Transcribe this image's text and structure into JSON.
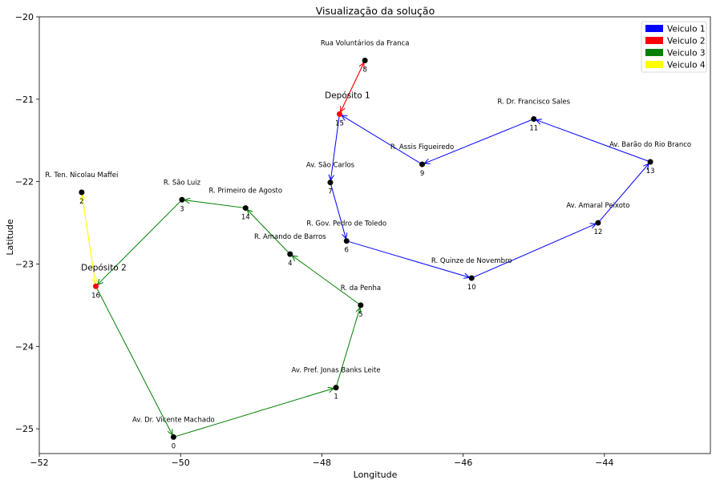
{
  "chart_data": {
    "type": "scatter",
    "title": "Visualização da solução",
    "xlabel": "Longitude",
    "ylabel": "Latitude",
    "xlim": [
      -52,
      -42.5
    ],
    "ylim": [
      -25.3,
      -20
    ],
    "xticks": [
      -52,
      -50,
      -48,
      -46,
      -44
    ],
    "yticks": [
      -20,
      -21,
      -22,
      -23,
      -24,
      -25
    ],
    "xtick_labels": [
      "−52",
      "−50",
      "−48",
      "−46",
      "−44"
    ],
    "ytick_labels": [
      "−20",
      "−21",
      "−22",
      "−23",
      "−24",
      "−25"
    ],
    "grid": false,
    "legend_position": "top-right",
    "legend": [
      {
        "name": "Veiculo 1",
        "color": "#0000ff"
      },
      {
        "name": "Veiculo 2",
        "color": "#ff0000"
      },
      {
        "name": "Veiculo 3",
        "color": "#008000"
      },
      {
        "name": "Veiculo 4",
        "color": "#ffff00"
      }
    ],
    "nodes": [
      {
        "id": "0",
        "x": -50.1,
        "y": -25.1,
        "label": "Av. Dr. Vicente Machado"
      },
      {
        "id": "1",
        "x": -47.8,
        "y": -24.5,
        "label": "Av. Pref. Jonas Banks Leite"
      },
      {
        "id": "2",
        "x": -51.4,
        "y": -22.13,
        "label": "R. Ten. Nicolau Maffei"
      },
      {
        "id": "3",
        "x": -49.98,
        "y": -22.22,
        "label": "R. São Luiz"
      },
      {
        "id": "4",
        "x": -48.45,
        "y": -22.88,
        "label": "R. Amando de Barros"
      },
      {
        "id": "5",
        "x": -47.45,
        "y": -23.5,
        "label": "R. da Penha"
      },
      {
        "id": "6",
        "x": -47.65,
        "y": -22.72,
        "label": "R. Gov. Pedro de Toledo"
      },
      {
        "id": "7",
        "x": -47.88,
        "y": -22.01,
        "label": "Av. São Carlos"
      },
      {
        "id": "8",
        "x": -47.39,
        "y": -20.53,
        "label": "Rua Voluntários da Franca"
      },
      {
        "id": "9",
        "x": -46.58,
        "y": -21.79,
        "label": "R. Assis Figueiredo"
      },
      {
        "id": "10",
        "x": -45.88,
        "y": -23.17,
        "label": "R. Quinze de Novembro"
      },
      {
        "id": "11",
        "x": -45.0,
        "y": -21.24,
        "label": "R. Dr. Francisco Sales"
      },
      {
        "id": "12",
        "x": -44.09,
        "y": -22.5,
        "label": "Av. Amaral Peixoto"
      },
      {
        "id": "13",
        "x": -43.35,
        "y": -21.76,
        "label": "Av. Barão do Rio Branco"
      },
      {
        "id": "14",
        "x": -49.08,
        "y": -22.32,
        "label": "R. Primeiro de Agosto"
      },
      {
        "id": "15",
        "x": -47.75,
        "y": -21.18,
        "label": "",
        "depot": "Depósito 1"
      },
      {
        "id": "16",
        "x": -51.2,
        "y": -23.27,
        "label": "",
        "depot": "Depósito 2"
      }
    ],
    "routes": [
      {
        "name": "Veiculo 1",
        "color": "#0000ff",
        "path": [
          "15",
          "7",
          "6",
          "10",
          "12",
          "13",
          "11",
          "9",
          "15"
        ]
      },
      {
        "name": "Veiculo 2",
        "color": "#ff0000",
        "path": [
          "15",
          "8",
          "15"
        ]
      },
      {
        "name": "Veiculo 3",
        "color": "#008000",
        "path": [
          "16",
          "0",
          "1",
          "5",
          "4",
          "14",
          "3",
          "16"
        ]
      },
      {
        "name": "Veiculo 4",
        "color": "#ffff00",
        "path": [
          "16",
          "2",
          "16"
        ]
      }
    ]
  }
}
